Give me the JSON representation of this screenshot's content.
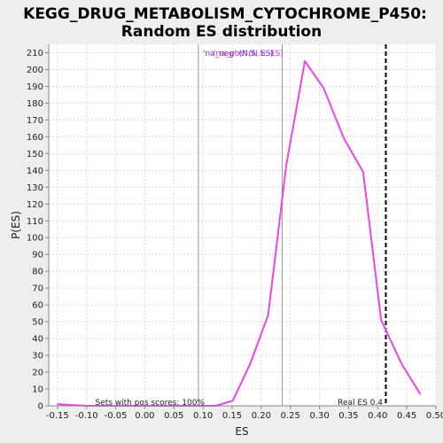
{
  "chart_data": {
    "type": "line",
    "title_line1": "KEGG_DRUG_METABOLISM_CYTOCHROME_P450:",
    "title_line2": "Random ES distribution",
    "xlabel": "ES",
    "ylabel": "P(ES)",
    "xlim": [
      -0.165,
      0.5
    ],
    "ylim": [
      0,
      215
    ],
    "x_ticks": [
      -0.15,
      -0.1,
      -0.05,
      0.0,
      0.05,
      0.1,
      0.15,
      0.2,
      0.25,
      0.3,
      0.35,
      0.4,
      0.45,
      0.5
    ],
    "x_tick_labels": [
      "-0.15",
      "-0.10",
      "-0.05",
      "0.00",
      "0.05",
      "0.10",
      "0.15",
      "0.20",
      "0.25",
      "0.30",
      "0.35",
      "0.40",
      "0.45",
      "0.50"
    ],
    "y_ticks": [
      0,
      10,
      20,
      30,
      40,
      50,
      60,
      70,
      80,
      90,
      100,
      110,
      120,
      130,
      140,
      150,
      160,
      170,
      180,
      190,
      200,
      210
    ],
    "grid": true,
    "series": [
      {
        "color": "#ee44ee",
        "x": [
          -0.15,
          -0.1,
          -0.05,
          0.0,
          0.05,
          0.1,
          0.122,
          0.151,
          0.181,
          0.212,
          0.243,
          0.275,
          0.307,
          0.342,
          0.375,
          0.406,
          0.441,
          0.473
        ],
        "y": [
          1,
          0,
          0,
          0,
          0,
          0,
          0,
          3,
          25,
          54,
          143,
          205,
          189,
          159,
          139,
          51,
          25,
          7
        ]
      }
    ],
    "vertical_lines": [
      {
        "x": 0.092,
        "style": "solid",
        "color": "#999999"
      },
      {
        "x": 0.236,
        "style": "solid",
        "color": "#999999"
      },
      {
        "x": 0.414,
        "style": "dashed",
        "color": "#000000"
      }
    ],
    "legend_texts": [
      "'na_neg' (N.S. ES)",
      "'na_pos' (N.S. ES)"
    ],
    "annotations": [
      {
        "text": "Sets with pos scores: 100%",
        "x": 0.092
      },
      {
        "text": "Real ES 0.4",
        "x": 0.414
      }
    ]
  }
}
